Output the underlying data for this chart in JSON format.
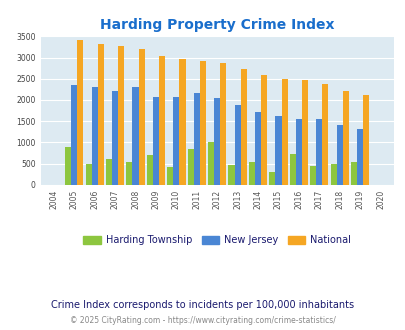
{
  "title": "Harding Property Crime Index",
  "subtitle": "Crime Index corresponds to incidents per 100,000 inhabitants",
  "copyright": "© 2025 CityRating.com - https://www.cityrating.com/crime-statistics/",
  "years": [
    2004,
    2005,
    2006,
    2007,
    2008,
    2009,
    2010,
    2011,
    2012,
    2013,
    2014,
    2015,
    2016,
    2017,
    2018,
    2019,
    2020
  ],
  "harding": [
    0,
    880,
    500,
    600,
    530,
    700,
    430,
    850,
    1020,
    470,
    540,
    310,
    730,
    450,
    490,
    530,
    0
  ],
  "nj": [
    0,
    2360,
    2310,
    2210,
    2310,
    2060,
    2060,
    2160,
    2050,
    1890,
    1720,
    1610,
    1560,
    1560,
    1400,
    1320,
    0
  ],
  "national": [
    0,
    3420,
    3330,
    3260,
    3210,
    3040,
    2960,
    2910,
    2860,
    2730,
    2590,
    2490,
    2470,
    2380,
    2200,
    2120,
    0
  ],
  "harding_color": "#8dc63f",
  "nj_color": "#4a86d4",
  "national_color": "#f5a623",
  "title_color": "#1a6ecc",
  "bg_color": "#ddeaf2",
  "ylim": [
    0,
    3500
  ],
  "yticks": [
    0,
    500,
    1000,
    1500,
    2000,
    2500,
    3000,
    3500
  ],
  "legend_labels": [
    "Harding Township",
    "New Jersey",
    "National"
  ],
  "subtitle_color": "#1a1a6e",
  "copyright_color": "#888888",
  "copyright_link_color": "#4477cc"
}
